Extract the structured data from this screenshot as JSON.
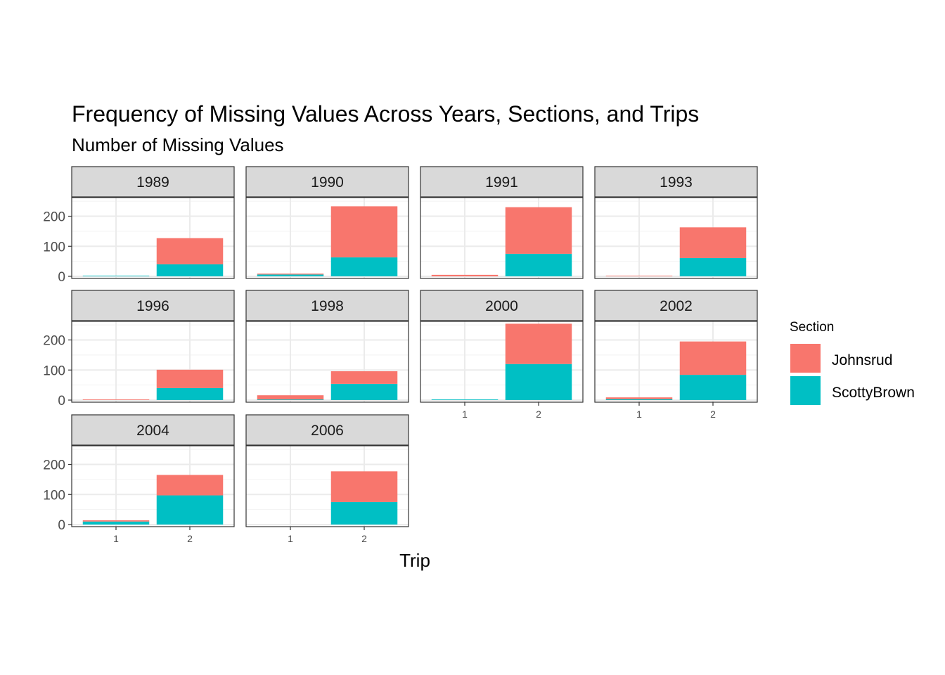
{
  "chart_data": {
    "type": "bar",
    "stacked": true,
    "facet_by": "year",
    "title": "Frequency of Missing Values Across Years, Sections, and Trips",
    "subtitle": "Number of Missing Values",
    "xlabel": "Trip",
    "ylabel": "",
    "categories": [
      "1",
      "2"
    ],
    "yticks": [
      0,
      100,
      200
    ],
    "ylim": [
      -7,
      262
    ],
    "legend": {
      "title": "Section",
      "position": "right",
      "entries": [
        {
          "name": "Johnsrud",
          "color": "#F8766D"
        },
        {
          "name": "ScottyBrown",
          "color": "#00BFC4"
        }
      ]
    },
    "panels": [
      {
        "year": "1989",
        "series": [
          {
            "name": "Johnsrud",
            "values": [
              0,
              87
            ]
          },
          {
            "name": "ScottyBrown",
            "values": [
              2,
              40
            ]
          }
        ]
      },
      {
        "year": "1990",
        "series": [
          {
            "name": "Johnsrud",
            "values": [
              3,
              170
            ]
          },
          {
            "name": "ScottyBrown",
            "values": [
              6,
              63
            ]
          }
        ]
      },
      {
        "year": "1991",
        "series": [
          {
            "name": "Johnsrud",
            "values": [
              5,
              155
            ]
          },
          {
            "name": "ScottyBrown",
            "values": [
              0,
              75
            ]
          }
        ]
      },
      {
        "year": "1993",
        "series": [
          {
            "name": "Johnsrud",
            "values": [
              2,
              102
            ]
          },
          {
            "name": "ScottyBrown",
            "values": [
              0,
              61
            ]
          }
        ]
      },
      {
        "year": "1996",
        "series": [
          {
            "name": "Johnsrud",
            "values": [
              2,
              61
            ]
          },
          {
            "name": "ScottyBrown",
            "values": [
              0,
              40
            ]
          }
        ]
      },
      {
        "year": "1998",
        "series": [
          {
            "name": "Johnsrud",
            "values": [
              14,
              42
            ]
          },
          {
            "name": "ScottyBrown",
            "values": [
              2,
              54
            ]
          }
        ]
      },
      {
        "year": "2000",
        "series": [
          {
            "name": "Johnsrud",
            "values": [
              0,
              134
            ]
          },
          {
            "name": "ScottyBrown",
            "values": [
              2,
              120
            ]
          }
        ]
      },
      {
        "year": "2002",
        "series": [
          {
            "name": "Johnsrud",
            "values": [
              6,
              111
            ]
          },
          {
            "name": "ScottyBrown",
            "values": [
              3,
              84
            ]
          }
        ]
      },
      {
        "year": "2004",
        "series": [
          {
            "name": "Johnsrud",
            "values": [
              4,
              68
            ]
          },
          {
            "name": "ScottyBrown",
            "values": [
              10,
              97
            ]
          }
        ]
      },
      {
        "year": "2006",
        "series": [
          {
            "name": "Johnsrud",
            "values": [
              0,
              102
            ]
          },
          {
            "name": "ScottyBrown",
            "values": [
              0,
              75
            ]
          }
        ]
      }
    ]
  }
}
